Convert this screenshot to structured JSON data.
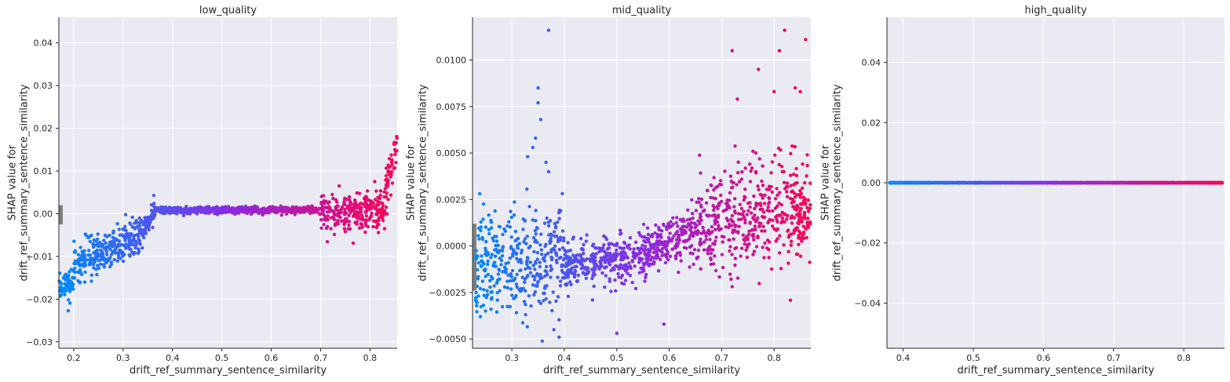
{
  "colors": {
    "plot_background": "#eaeaf2",
    "grid": "#ffffff",
    "axis": "#262626",
    "low_feature_color": "#008afb",
    "mid_feature_color": "#8a2be2",
    "high_feature_color": "#ff0052",
    "missing_bar_color": "#808080"
  },
  "chart_data": [
    {
      "type": "scatter",
      "title": "low_quality",
      "xlabel": "drift_ref_summary_sentence_similarity",
      "ylabel_lines": [
        "SHAP value for",
        "drift_ref_summary_sentence_similarity"
      ],
      "xlim": [
        0.17,
        0.855
      ],
      "ylim": [
        -0.0315,
        0.046
      ],
      "xticks": [
        0.2,
        0.3,
        0.4,
        0.5,
        0.6,
        0.7,
        0.8
      ],
      "xtick_labels": [
        "0.2",
        "0.3",
        "0.4",
        "0.5",
        "0.6",
        "0.7",
        "0.8"
      ],
      "yticks": [
        -0.03,
        -0.02,
        -0.01,
        0.0,
        0.01,
        0.02,
        0.03,
        0.04
      ],
      "ytick_labels": [
        "−0.03",
        "−0.02",
        "−0.01",
        "0.00",
        "0.01",
        "0.02",
        "0.03",
        "0.04"
      ],
      "grid": true,
      "missing_value_bar": {
        "y_range": [
          -0.0025,
          0.002
        ]
      },
      "segments": [
        {
          "x": [
            0.17,
            0.2
          ],
          "y_center": [
            -0.018,
            -0.015
          ],
          "y_spread": 0.0035
        },
        {
          "x": [
            0.2,
            0.34
          ],
          "y_center": [
            -0.012,
            -0.005
          ],
          "y_spread": 0.0045
        },
        {
          "x": [
            0.34,
            0.365
          ],
          "y_center": [
            -0.004,
            0.0005
          ],
          "y_spread": 0.0025
        },
        {
          "x": [
            0.365,
            0.7
          ],
          "y_center": [
            0.0008,
            0.0009
          ],
          "y_spread": 0.0008
        },
        {
          "x": [
            0.7,
            0.83
          ],
          "y_center": [
            0.0,
            0.001
          ],
          "y_spread": 0.0045
        },
        {
          "x": [
            0.83,
            0.855
          ],
          "y_center": [
            0.005,
            0.016
          ],
          "y_spread": 0.005
        }
      ]
    },
    {
      "type": "scatter",
      "title": "mid_quality",
      "xlabel": "drift_ref_summary_sentence_similarity",
      "ylabel_lines": [
        "SHAP value for",
        "drift_ref_summary_sentence_similarity"
      ],
      "xlim": [
        0.225,
        0.87
      ],
      "ylim": [
        -0.0055,
        0.0123
      ],
      "xticks": [
        0.3,
        0.4,
        0.5,
        0.6,
        0.7,
        0.8
      ],
      "xtick_labels": [
        "0.3",
        "0.4",
        "0.5",
        "0.6",
        "0.7",
        "0.8"
      ],
      "yticks": [
        -0.005,
        -0.0025,
        0.0,
        0.0025,
        0.005,
        0.0075,
        0.01
      ],
      "ytick_labels": [
        "−0.0050",
        "−0.0025",
        "0.0000",
        "0.0025",
        "0.0050",
        "0.0075",
        "0.0100"
      ],
      "grid": true,
      "missing_value_bar": {
        "y_range": [
          -0.0024,
          0.0012
        ]
      },
      "segments": [
        {
          "x": [
            0.23,
            0.4
          ],
          "y_center": [
            -0.001,
            -0.001
          ],
          "y_spread": 0.0028
        },
        {
          "x": [
            0.4,
            0.55
          ],
          "y_center": [
            -0.0012,
            -0.0005
          ],
          "y_spread": 0.0012
        },
        {
          "x": [
            0.55,
            0.65
          ],
          "y_center": [
            -0.0004,
            0.0008
          ],
          "y_spread": 0.0012
        },
        {
          "x": [
            0.65,
            0.87
          ],
          "y_center": [
            0.0012,
            0.002
          ],
          "y_spread": 0.0028
        }
      ],
      "outliers": [
        {
          "x": 0.37,
          "y": 0.0116
        },
        {
          "x": 0.35,
          "y": 0.0085
        },
        {
          "x": 0.35,
          "y": 0.0077
        },
        {
          "x": 0.355,
          "y": 0.0068
        },
        {
          "x": 0.345,
          "y": 0.0058
        },
        {
          "x": 0.34,
          "y": 0.0053
        },
        {
          "x": 0.365,
          "y": 0.0045
        },
        {
          "x": 0.37,
          "y": 0.004
        },
        {
          "x": 0.33,
          "y": 0.0048
        },
        {
          "x": 0.72,
          "y": 0.0105
        },
        {
          "x": 0.77,
          "y": 0.0095
        },
        {
          "x": 0.81,
          "y": 0.0105
        },
        {
          "x": 0.82,
          "y": 0.0116
        },
        {
          "x": 0.86,
          "y": 0.0111
        },
        {
          "x": 0.84,
          "y": 0.0085
        },
        {
          "x": 0.73,
          "y": 0.0079
        },
        {
          "x": 0.8,
          "y": 0.0083
        },
        {
          "x": 0.85,
          "y": 0.0083
        },
        {
          "x": 0.5,
          "y": -0.0047
        },
        {
          "x": 0.39,
          "y": -0.0049
        },
        {
          "x": 0.59,
          "y": -0.0042
        },
        {
          "x": 0.38,
          "y": -0.0045
        },
        {
          "x": 0.24,
          "y": -0.0038
        }
      ]
    },
    {
      "type": "scatter",
      "title": "high_quality",
      "xlabel": "drift_ref_summary_sentence_similarity",
      "ylabel_lines": [
        "SHAP value for",
        "drift_ref_summary_sentence_similarity"
      ],
      "xlim": [
        0.377,
        0.858
      ],
      "ylim": [
        -0.055,
        0.055
      ],
      "xticks": [
        0.4,
        0.5,
        0.6,
        0.7,
        0.8
      ],
      "xtick_labels": [
        "0.4",
        "0.5",
        "0.6",
        "0.7",
        "0.8"
      ],
      "yticks": [
        -0.04,
        -0.02,
        0.0,
        0.02,
        0.04
      ],
      "ytick_labels": [
        "−0.04",
        "−0.02",
        "0.00",
        "0.02",
        "0.04"
      ],
      "grid": true,
      "segments": [
        {
          "x": [
            0.38,
            0.855
          ],
          "y_center": [
            0.0,
            0.0
          ],
          "y_spread": 0.0
        }
      ]
    }
  ]
}
